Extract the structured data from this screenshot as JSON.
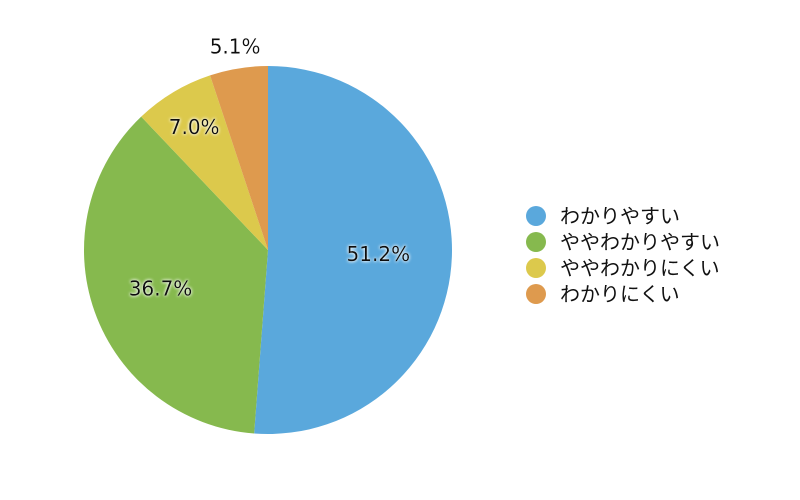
{
  "chart_data": {
    "type": "pie",
    "categories": [
      "わかりやすい",
      "ややわかりやすい",
      "ややわかりにくい",
      "わかりにくい"
    ],
    "values": [
      51.2,
      36.7,
      7.0,
      5.1
    ],
    "value_labels": [
      "51.2%",
      "36.7%",
      "7.0%",
      "5.1%"
    ],
    "colors": [
      "#5aa8dc",
      "#86b94e",
      "#dcc94c",
      "#de9a4e"
    ],
    "start": "top",
    "direction": "clockwise",
    "legend_position": "right",
    "title": ""
  }
}
